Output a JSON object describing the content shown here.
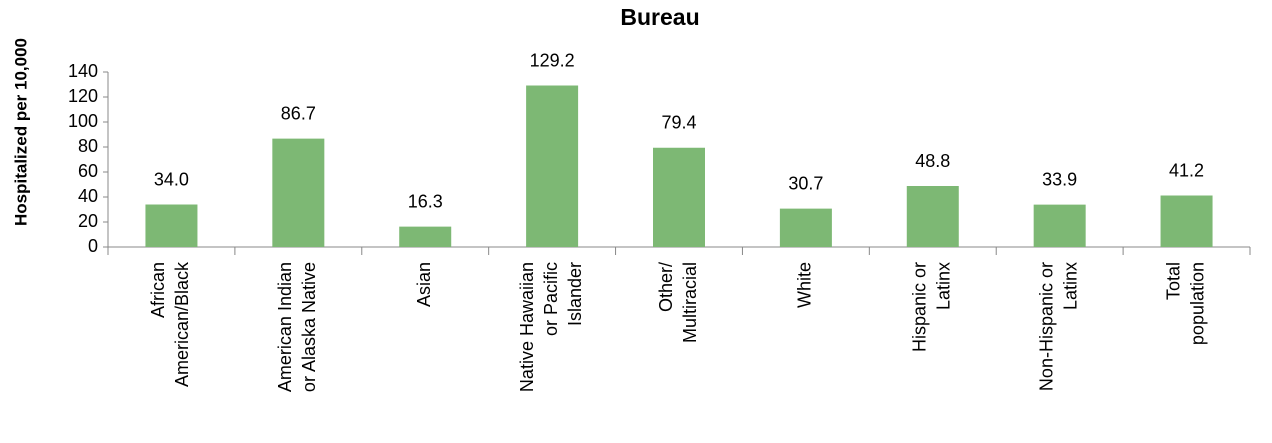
{
  "chart_data": {
    "type": "bar",
    "title": "Bureau",
    "y_label": "Hospitalized per 10,000",
    "categories": [
      [
        "African",
        "American/Black"
      ],
      [
        "American Indian",
        "or Alaska Native"
      ],
      [
        "Asian"
      ],
      [
        "Native Hawaiian",
        "or Pacific",
        "Islander"
      ],
      [
        "Other/",
        "Multiracial"
      ],
      [
        "White"
      ],
      [
        "Hispanic or",
        "Latinx"
      ],
      [
        "Non-Hispanic or",
        "Latinx"
      ],
      [
        "Total",
        "population"
      ]
    ],
    "values": [
      34.0,
      86.7,
      16.3,
      129.2,
      79.4,
      30.7,
      48.8,
      33.9,
      41.2
    ],
    "value_labels": [
      "34.0",
      "86.7",
      "16.3",
      "129.2",
      "79.4",
      "30.7",
      "48.8",
      "33.9",
      "41.2"
    ],
    "color": "#7db874",
    "ylim": [
      0,
      140
    ],
    "yticks": [
      0,
      20,
      40,
      60,
      80,
      100,
      120,
      140
    ]
  }
}
